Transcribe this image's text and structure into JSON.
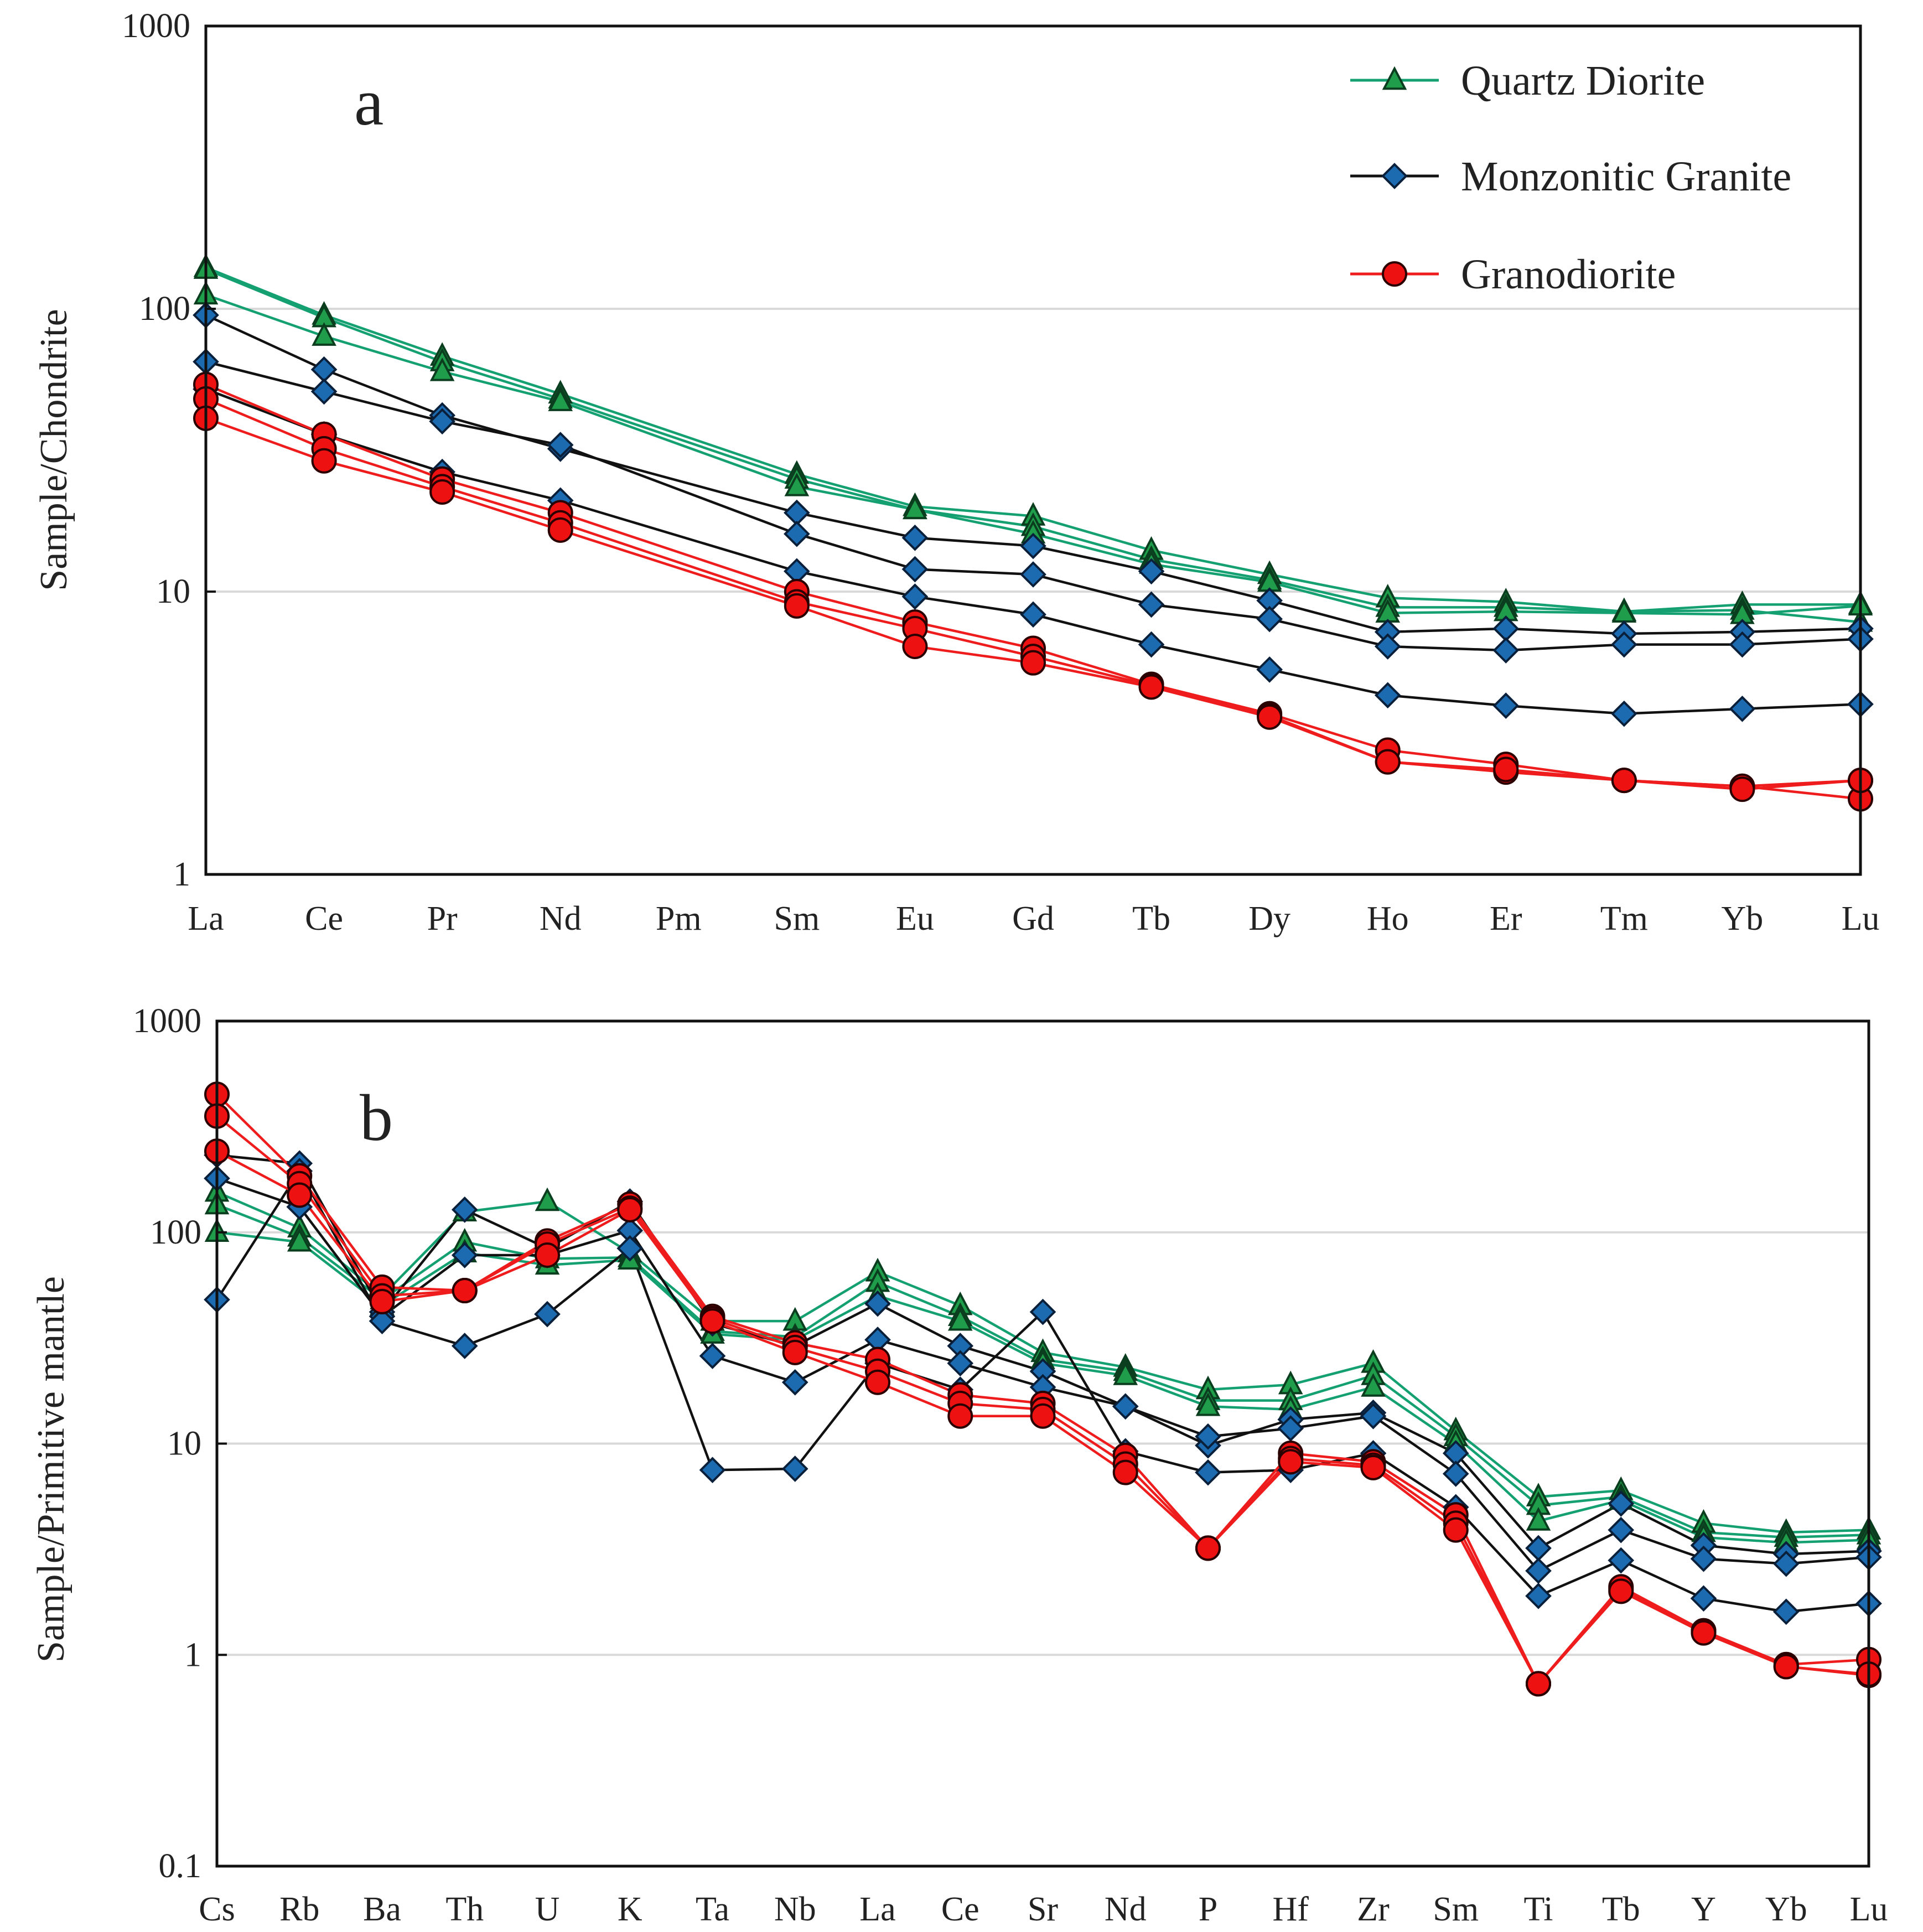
{
  "chart_data": [
    {
      "type": "line",
      "panel_label": "a",
      "ylabel": "Sample/Chondrite",
      "xlabel": "",
      "yscale": "log",
      "ylim": [
        1,
        1000
      ],
      "yticks": [
        1,
        10,
        100,
        1000
      ],
      "ytick_labels": [
        "1",
        "10",
        "100",
        "1000"
      ],
      "grid": "horizontal",
      "legend_position": "top-right",
      "categories": [
        "La",
        "Ce",
        "Pr",
        "Nd",
        "Pm",
        "Sm",
        "Eu",
        "Gd",
        "Tb",
        "Dy",
        "Ho",
        "Er",
        "Tm",
        "Yb",
        "Lu"
      ],
      "series": [
        {
          "name": "Quartz Diorite",
          "group": "qd",
          "values": [
            140,
            95,
            68,
            50,
            null,
            26,
            20,
            18.5,
            14,
            11.5,
            9.5,
            9.2,
            8.5,
            9.0,
            9.0
          ]
        },
        {
          "name": "Quartz Diorite",
          "group": "qd",
          "values": [
            138,
            93,
            65,
            48,
            null,
            25,
            19.5,
            17,
            13,
            11,
            8.8,
            8.8,
            8.5,
            8.6,
            7.8
          ]
        },
        {
          "name": "Quartz Diorite",
          "group": "qd",
          "values": [
            112,
            80,
            60,
            47,
            null,
            23.5,
            19.5,
            16,
            12.5,
            10.8,
            8.4,
            8.5,
            8.4,
            8.3,
            8.9
          ]
        },
        {
          "name": "Monzonitic Granite",
          "group": "mg",
          "values": [
            95,
            61,
            42,
            32,
            null,
            19,
            15.5,
            14.5,
            11.8,
            9.3,
            7.2,
            7.4,
            7.1,
            7.2,
            7.4
          ]
        },
        {
          "name": "Monzonitic Granite",
          "group": "mg",
          "values": [
            65,
            51,
            40,
            33,
            null,
            16,
            12,
            11.5,
            9.0,
            8.0,
            6.4,
            6.2,
            6.5,
            6.5,
            6.8
          ]
        },
        {
          "name": "Monzonitic Granite",
          "group": "mg",
          "values": [
            52,
            36,
            26.5,
            21,
            null,
            11.8,
            9.6,
            8.3,
            6.5,
            5.3,
            4.3,
            3.95,
            3.7,
            3.85,
            4.0
          ]
        },
        {
          "name": "Granodiorite",
          "group": "gd",
          "values": [
            54,
            36,
            25,
            19,
            null,
            10,
            7.8,
            6.3,
            4.7,
            3.7,
            2.75,
            2.45,
            2.15,
            2.05,
            2.15
          ]
        },
        {
          "name": "Granodiorite",
          "group": "gd",
          "values": [
            48,
            32,
            23.5,
            17.5,
            null,
            9.2,
            7.4,
            5.9,
            4.65,
            3.65,
            2.5,
            2.3,
            2.15,
            2.05,
            1.85
          ]
        },
        {
          "name": "Granodiorite",
          "group": "gd",
          "values": [
            41,
            29,
            22.5,
            16.5,
            null,
            8.9,
            6.4,
            5.6,
            4.6,
            3.6,
            2.5,
            2.35,
            2.15,
            2.0,
            2.15
          ]
        }
      ],
      "legend": [
        "Quartz Diorite",
        "Monzonitic Granite",
        "Granodiorite"
      ]
    },
    {
      "type": "line",
      "panel_label": "b",
      "ylabel": "Sample/Primitive mantle",
      "xlabel": "",
      "yscale": "log",
      "ylim": [
        0.1,
        1000
      ],
      "yticks": [
        0.1,
        1,
        10,
        100,
        1000
      ],
      "ytick_labels": [
        "0.1",
        "1",
        "10",
        "100",
        "1000"
      ],
      "grid": "horizontal",
      "categories": [
        "Cs",
        "Rb",
        "Ba",
        "Th",
        "U",
        "K",
        "Ta",
        "Nb",
        "La",
        "Ce",
        "Sr",
        "Nd",
        "P",
        "Hf",
        "Zr",
        "Sm",
        "Ti",
        "Tb",
        "Y",
        "Yb",
        "Lu"
      ],
      "series": [
        {
          "name": "Quartz Diorite",
          "group": "qd",
          "values": [
            155,
            105,
            50,
            125,
            140,
            80,
            38,
            38,
            65,
            45,
            27,
            23,
            18,
            19,
            24,
            11.5,
            5.6,
            6.0,
            4.2,
            3.8,
            3.9
          ]
        },
        {
          "name": "Quartz Diorite",
          "group": "qd",
          "values": [
            135,
            95,
            48,
            90,
            75,
            76,
            34,
            32,
            58,
            40,
            25,
            22,
            16,
            16,
            21,
            10.8,
            5.1,
            5.6,
            3.8,
            3.6,
            3.7
          ]
        },
        {
          "name": "Quartz Diorite",
          "group": "qd",
          "values": [
            100,
            90,
            45,
            80,
            70,
            74,
            33,
            31,
            50,
            38,
            24,
            21,
            15,
            14.5,
            18.5,
            10.0,
            4.3,
            5.4,
            3.6,
            3.4,
            3.5
          ]
        },
        {
          "name": "Monzonitic Granite",
          "group": "mg",
          "values": [
            232,
            212,
            42,
            128,
            84,
            140,
            37,
            29,
            46,
            29,
            22,
            15,
            9.8,
            13,
            14,
            9.0,
            3.2,
            5.2,
            3.3,
            3.0,
            3.1
          ]
        },
        {
          "name": "Monzonitic Granite",
          "group": "mg",
          "values": [
            180,
            132,
            40,
            78,
            78,
            102,
            26,
            19.5,
            31,
            24,
            18.5,
            15,
            10.8,
            11.8,
            13.5,
            7.2,
            2.5,
            3.9,
            2.85,
            2.7,
            2.9
          ]
        },
        {
          "name": "Monzonitic Granite",
          "group": "mg",
          "values": [
            48,
            195,
            38,
            29,
            41,
            84,
            7.5,
            7.6,
            24,
            18,
            42,
            9.2,
            7.3,
            7.5,
            9.0,
            5.0,
            1.9,
            2.8,
            1.85,
            1.6,
            1.75
          ]
        },
        {
          "name": "Granodiorite",
          "group": "gd",
          "values": [
            450,
            185,
            55,
            53,
            91,
            136,
            40,
            30,
            25,
            17,
            15.5,
            8.8,
            3.2,
            9.0,
            8.2,
            4.6,
            0.73,
            2.05,
            1.3,
            0.9,
            0.95
          ]
        },
        {
          "name": "Granodiorite",
          "group": "gd",
          "values": [
            355,
            170,
            50,
            53,
            88,
            130,
            39,
            28.5,
            22,
            15.5,
            14.5,
            8.0,
            3.2,
            8.5,
            7.9,
            4.2,
            0.73,
            2.1,
            1.3,
            0.88,
            0.8
          ]
        },
        {
          "name": "Granodiorite",
          "group": "gd",
          "values": [
            242,
            150,
            47,
            53,
            78,
            128,
            38,
            27,
            19.5,
            13.5,
            13.5,
            7.3,
            3.2,
            8.2,
            7.7,
            3.9,
            0.73,
            2.0,
            1.27,
            0.88,
            0.81
          ]
        }
      ]
    }
  ],
  "legend_items": [
    {
      "label": "Quartz Diorite",
      "group": "qd"
    },
    {
      "label": "Monzonitic Granite",
      "group": "mg"
    },
    {
      "label": "Granodiorite",
      "group": "gd"
    }
  ],
  "styles": {
    "qd": {
      "line": "#14a070",
      "fill": "#1f9d4a",
      "marker": "triangle"
    },
    "mg": {
      "line": "#111111",
      "fill": "#1c6bb0",
      "marker": "diamond"
    },
    "gd": {
      "line": "#ee1c1c",
      "fill": "#ee1111",
      "marker": "circle"
    },
    "grid": "#d9d9d9",
    "axis": "#111111"
  }
}
